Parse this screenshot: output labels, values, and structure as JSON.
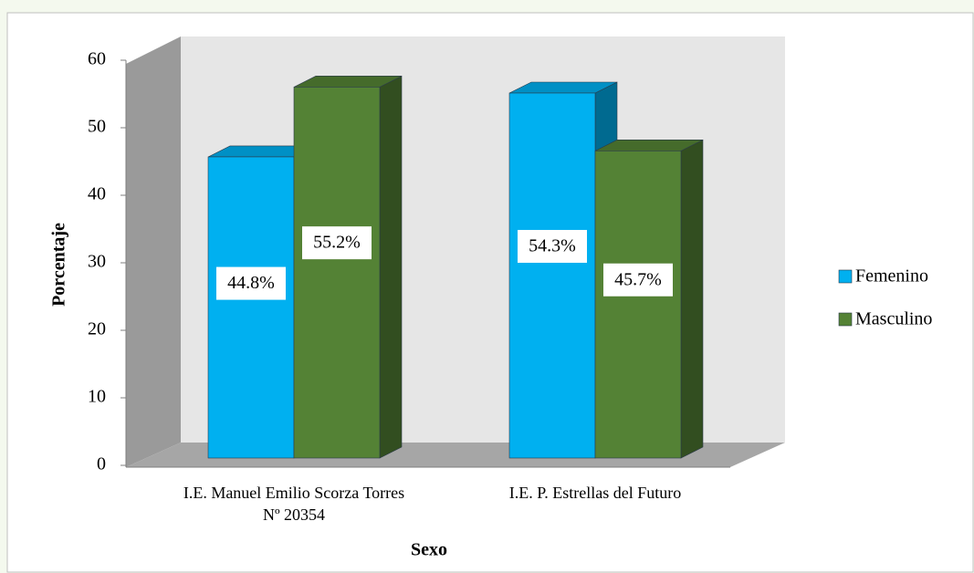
{
  "chart_data": {
    "type": "bar3d",
    "x_label": "Sexo",
    "y_label": "Porcentaje",
    "categories": [
      "I.E. Manuel Emilio Scorza Torres Nº 20354",
      "I.E. P. Estrellas del Futuro"
    ],
    "series": [
      {
        "name": "Femenino",
        "color": "#00b0f0",
        "values": [
          44.8,
          54.3
        ],
        "value_labels": [
          "44.8%",
          "54.3%"
        ]
      },
      {
        "name": "Masculino",
        "color": "#548235",
        "values": [
          55.2,
          45.7
        ],
        "value_labels": [
          "55.2%",
          "45.7%"
        ]
      }
    ],
    "ylim": [
      0,
      60
    ],
    "yticks": [
      0,
      10,
      20,
      30,
      40,
      50,
      60
    ],
    "legend": "right"
  }
}
